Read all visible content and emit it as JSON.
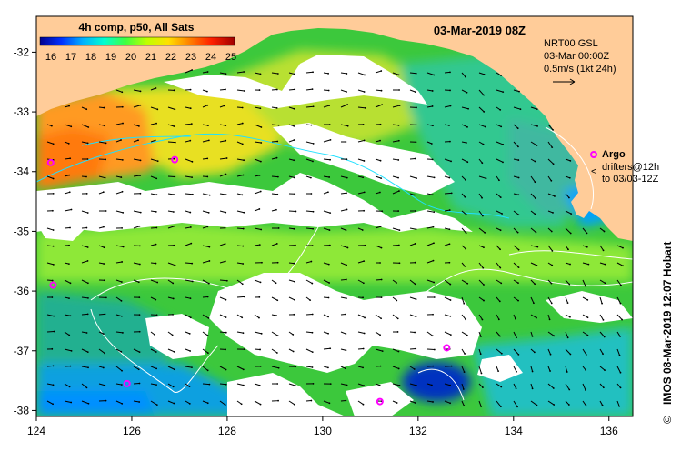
{
  "title": {
    "colorbar_label": "4h comp, p50, All Sats",
    "datetime": "03-Mar-2019 08Z",
    "credit": "IMOS 08-Mar-2019 12:07 Hobart",
    "copyright_symbol": "©"
  },
  "colorbar": {
    "ticks": [
      "16",
      "17",
      "18",
      "19",
      "20",
      "21",
      "22",
      "23",
      "24",
      "25"
    ],
    "colors": [
      "#00008f",
      "#0030ff",
      "#00b0ff",
      "#00ffd0",
      "#40ff40",
      "#c0ff00",
      "#ffe000",
      "#ff8000",
      "#ff2000",
      "#a00000"
    ]
  },
  "currents_legend": {
    "line1": "NRT00 GSL",
    "line2": "03-Mar 00:00Z",
    "line3": "0.5m/s (1kt 24h)"
  },
  "argo_legend": {
    "label": "Argo",
    "line1": "drifters@12h",
    "line2": "to 03/03-12Z"
  },
  "axes": {
    "x_ticks": [
      "124",
      "126",
      "128",
      "130",
      "132",
      "134",
      "136"
    ],
    "y_ticks": [
      "-32",
      "-33",
      "-34",
      "-35",
      "-36",
      "-37",
      "-38"
    ],
    "lon_range": [
      124,
      136.5
    ],
    "lat_range": [
      -38.1,
      -31.4
    ]
  },
  "argo_floats": [
    {
      "lon": 126.9,
      "lat": -33.8
    },
    {
      "lon": 125.9,
      "lat": -37.55
    },
    {
      "lon": 131.2,
      "lat": -37.85
    },
    {
      "lon": 124.3,
      "lat": -33.85
    },
    {
      "lon": 124.35,
      "lat": -35.9
    },
    {
      "lon": 132.6,
      "lat": -36.95
    }
  ],
  "colors": {
    "land": "#ffcc99",
    "cloud": "#ffffff",
    "frame": "#000000",
    "argo": "#ff00ff"
  }
}
